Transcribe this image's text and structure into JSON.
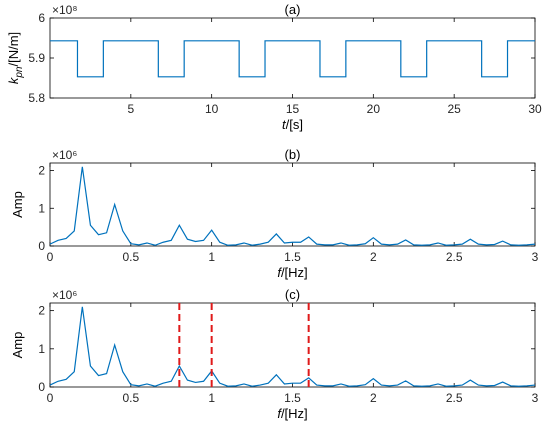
{
  "chart_data": [
    {
      "type": "line",
      "title": "(a)",
      "exponent_label": "×10⁸",
      "ylabel_main": "k",
      "ylabel_sub": "pn",
      "ylabel_unit": "/[N/m]",
      "xlabel_main": "t",
      "xlabel_unit": "/[s]",
      "xlim": [
        0,
        30
      ],
      "ylim": [
        5.8,
        6.0
      ],
      "xticks": [
        5,
        10,
        15,
        20,
        25,
        30
      ],
      "xtick_labels": [
        "5",
        "10",
        "15",
        "20",
        "25",
        "30"
      ],
      "yticks": [
        5.8,
        5.9,
        6.0
      ],
      "ytick_labels": [
        "5.8",
        "5.9",
        "6"
      ],
      "high_value": 5.943,
      "low_value": 5.853,
      "low_intervals": [
        [
          1.7,
          3.3
        ],
        [
          6.7,
          8.3
        ],
        [
          11.7,
          13.3
        ],
        [
          16.7,
          18.3
        ],
        [
          21.7,
          23.3
        ],
        [
          26.7,
          28.3
        ]
      ],
      "color": "#0072BD"
    },
    {
      "type": "line",
      "title": "(b)",
      "exponent_label": "×10⁶",
      "ylabel": "Amp",
      "xlabel_main": "f",
      "xlabel_unit": "/[Hz]",
      "xlim": [
        0,
        3
      ],
      "ylim": [
        0,
        2.2
      ],
      "xticks": [
        0,
        0.5,
        1,
        1.5,
        2,
        2.5,
        3
      ],
      "xtick_labels": [
        "0",
        "0.5",
        "1",
        "1.5",
        "2",
        "2.5",
        "3"
      ],
      "yticks": [
        0,
        1,
        2
      ],
      "ytick_labels": [
        "0",
        "1",
        "2"
      ],
      "x": [
        0,
        0.05,
        0.1,
        0.15,
        0.2,
        0.25,
        0.3,
        0.35,
        0.4,
        0.45,
        0.5,
        0.55,
        0.6,
        0.65,
        0.7,
        0.75,
        0.8,
        0.85,
        0.9,
        0.95,
        1.0,
        1.05,
        1.1,
        1.15,
        1.2,
        1.25,
        1.3,
        1.35,
        1.4,
        1.45,
        1.5,
        1.55,
        1.6,
        1.65,
        1.7,
        1.75,
        1.8,
        1.85,
        1.9,
        1.95,
        2.0,
        2.05,
        2.1,
        2.15,
        2.2,
        2.25,
        2.3,
        2.35,
        2.4,
        2.45,
        2.5,
        2.55,
        2.6,
        2.65,
        2.7,
        2.75,
        2.8,
        2.85,
        2.9,
        2.95,
        3.0
      ],
      "y": [
        0.05,
        0.15,
        0.2,
        0.4,
        2.1,
        0.55,
        0.3,
        0.35,
        1.1,
        0.4,
        0.06,
        0.03,
        0.08,
        0.02,
        0.1,
        0.15,
        0.55,
        0.18,
        0.12,
        0.15,
        0.42,
        0.1,
        0.02,
        0.03,
        0.08,
        0.02,
        0.05,
        0.1,
        0.32,
        0.08,
        0.1,
        0.1,
        0.24,
        0.05,
        0.03,
        0.03,
        0.08,
        0.02,
        0.03,
        0.06,
        0.22,
        0.05,
        0.03,
        0.05,
        0.16,
        0.03,
        0.02,
        0.03,
        0.08,
        0.02,
        0.03,
        0.05,
        0.18,
        0.05,
        0.03,
        0.04,
        0.13,
        0.03,
        0.02,
        0.03,
        0.05
      ],
      "color": "#0072BD"
    },
    {
      "type": "line",
      "title": "(c)",
      "exponent_label": "×10⁶",
      "ylabel": "Amp",
      "xlabel_main": "f",
      "xlabel_unit": "/[Hz]",
      "xlim": [
        0,
        3
      ],
      "ylim": [
        0,
        2.2
      ],
      "xticks": [
        0,
        0.5,
        1,
        1.5,
        2,
        2.5,
        3
      ],
      "xtick_labels": [
        "0",
        "0.5",
        "1",
        "1.5",
        "2",
        "2.5",
        "3"
      ],
      "yticks": [
        0,
        1,
        2
      ],
      "ytick_labels": [
        "0",
        "1",
        "2"
      ],
      "x": [
        0,
        0.05,
        0.1,
        0.15,
        0.2,
        0.25,
        0.3,
        0.35,
        0.4,
        0.45,
        0.5,
        0.55,
        0.6,
        0.65,
        0.7,
        0.75,
        0.8,
        0.85,
        0.9,
        0.95,
        1.0,
        1.05,
        1.1,
        1.15,
        1.2,
        1.25,
        1.3,
        1.35,
        1.4,
        1.45,
        1.5,
        1.55,
        1.6,
        1.65,
        1.7,
        1.75,
        1.8,
        1.85,
        1.9,
        1.95,
        2.0,
        2.05,
        2.1,
        2.15,
        2.2,
        2.25,
        2.3,
        2.35,
        2.4,
        2.45,
        2.5,
        2.55,
        2.6,
        2.65,
        2.7,
        2.75,
        2.8,
        2.85,
        2.9,
        2.95,
        3.0
      ],
      "y": [
        0.05,
        0.15,
        0.2,
        0.4,
        2.1,
        0.55,
        0.3,
        0.35,
        1.1,
        0.4,
        0.06,
        0.03,
        0.08,
        0.02,
        0.1,
        0.15,
        0.55,
        0.18,
        0.12,
        0.15,
        0.42,
        0.1,
        0.02,
        0.03,
        0.08,
        0.02,
        0.05,
        0.1,
        0.32,
        0.08,
        0.1,
        0.1,
        0.24,
        0.05,
        0.03,
        0.03,
        0.08,
        0.02,
        0.03,
        0.06,
        0.22,
        0.05,
        0.03,
        0.05,
        0.16,
        0.03,
        0.02,
        0.03,
        0.08,
        0.02,
        0.03,
        0.05,
        0.18,
        0.05,
        0.03,
        0.04,
        0.13,
        0.03,
        0.02,
        0.03,
        0.05
      ],
      "reference_lines_x": [
        0.8,
        1.0,
        1.6
      ],
      "reference_line_color": "#e01a1a",
      "color": "#0072BD"
    }
  ]
}
